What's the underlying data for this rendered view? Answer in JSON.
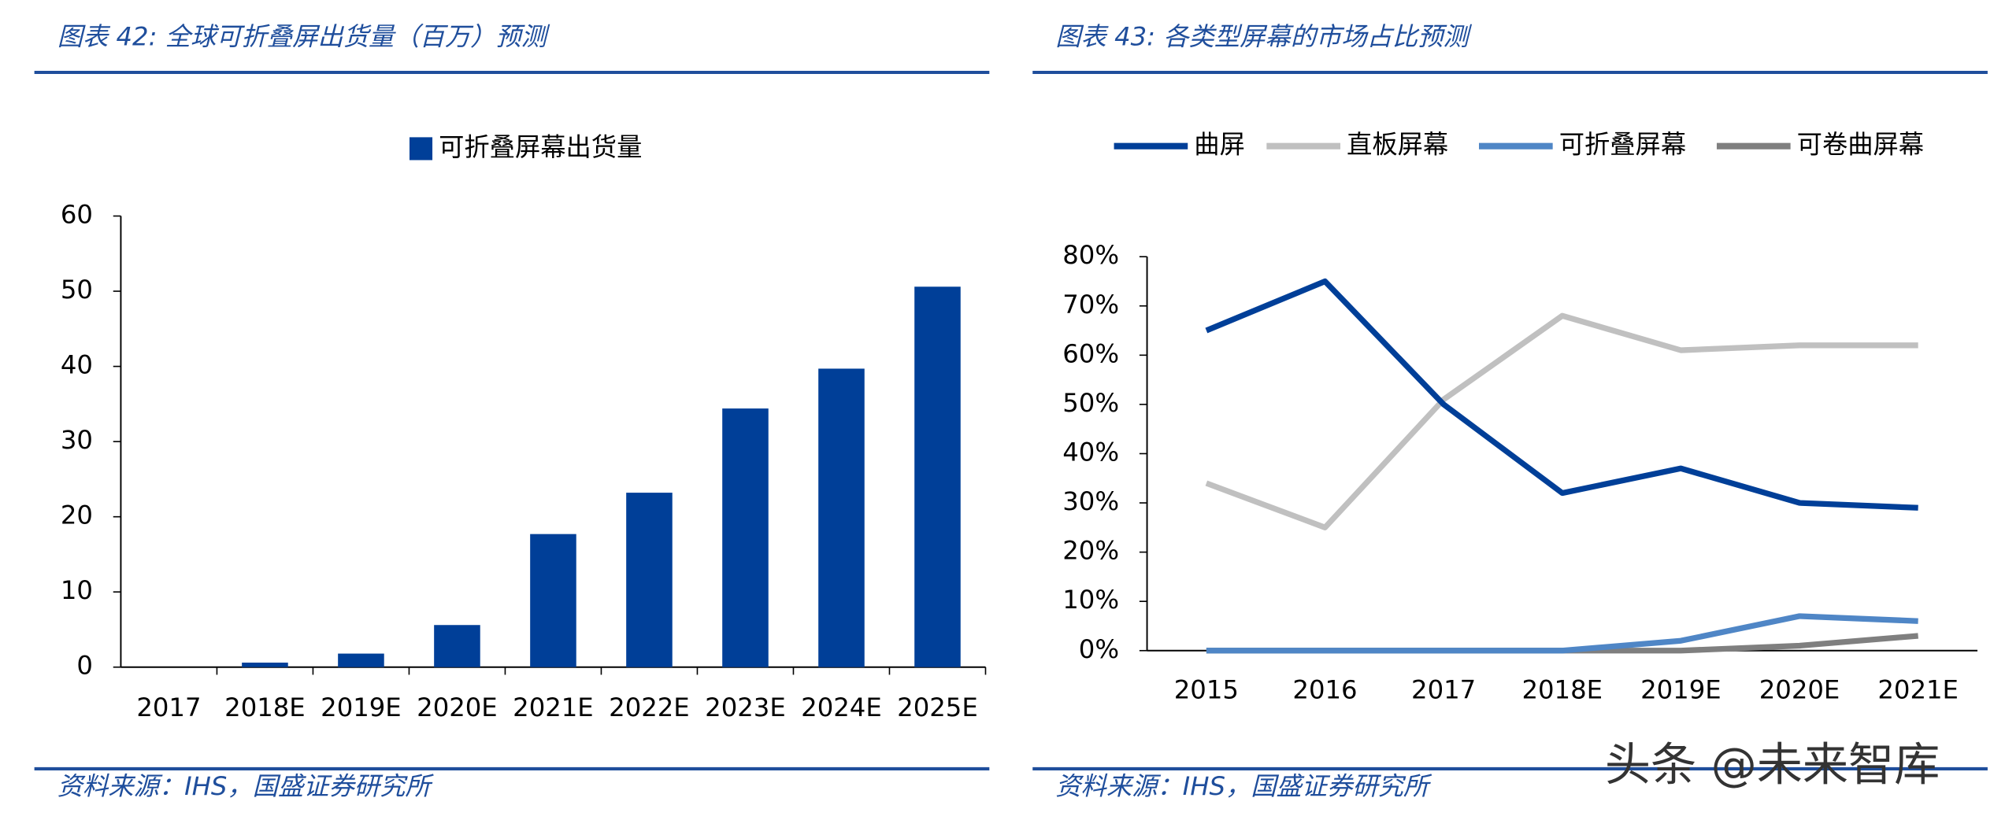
{
  "chart_data": [
    {
      "type": "bar",
      "title": "图表 42:  全球可折叠屏出货量（百万）预测",
      "source": "资料来源：IHS，国盛证券研究所",
      "categories": [
        "2017",
        "2018E",
        "2019E",
        "2020E",
        "2021E",
        "2022E",
        "2023E",
        "2024E",
        "2025E"
      ],
      "series": [
        {
          "name": "可折叠屏幕出货量",
          "color": "#003f98",
          "values": [
            0,
            0.6,
            1.8,
            5.6,
            17.7,
            23.2,
            34.4,
            39.7,
            50.6
          ]
        }
      ],
      "ylim": [
        0,
        60
      ],
      "yticks": [
        0,
        10,
        20,
        30,
        40,
        50,
        60
      ],
      "legend": "top"
    },
    {
      "type": "line",
      "title": "图表 43:  各类型屏幕的市场占比预测",
      "source": "资料来源：IHS，国盛证券研究所",
      "categories": [
        "2015",
        "2016",
        "2017",
        "2018E",
        "2019E",
        "2020E",
        "2021E"
      ],
      "series": [
        {
          "name": "曲屏",
          "color": "#003f98",
          "values": [
            65,
            75,
            50,
            32,
            37,
            30,
            29
          ]
        },
        {
          "name": "直板屏幕",
          "color": "#c0c0c0",
          "values": [
            34,
            25,
            51,
            68,
            61,
            62,
            62
          ]
        },
        {
          "name": "可折叠屏幕",
          "color": "#4f86c6",
          "values": [
            0,
            0,
            0,
            0,
            2,
            7,
            6
          ]
        },
        {
          "name": "可卷曲屏幕",
          "color": "#7f7f7f",
          "values": [
            0,
            0,
            0,
            0,
            0,
            1,
            3
          ]
        }
      ],
      "ylim": [
        0,
        80
      ],
      "yticks": [
        {
          "value": 0,
          "label": "0%"
        },
        {
          "value": 10,
          "label": "10%"
        },
        {
          "value": 20,
          "label": "20%"
        },
        {
          "value": 30,
          "label": "30%"
        },
        {
          "value": 40,
          "label": "40%"
        },
        {
          "value": 50,
          "label": "50%"
        },
        {
          "value": 60,
          "label": "60%"
        },
        {
          "value": 70,
          "label": "70%"
        },
        {
          "value": 80,
          "label": "80%"
        }
      ],
      "legend": "top"
    }
  ],
  "watermark": "头条 @未来智库"
}
